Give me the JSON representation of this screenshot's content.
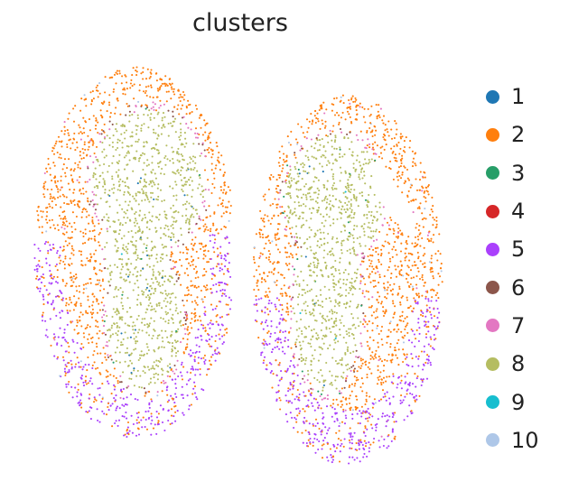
{
  "chart_data": {
    "type": "scatter",
    "title": "clusters",
    "xlabel": "",
    "ylabel": "",
    "grid": false,
    "legend_position": "right",
    "series": [
      {
        "name": "1",
        "color": "#1f77b4"
      },
      {
        "name": "2",
        "color": "#ff7f0e"
      },
      {
        "name": "3",
        "color": "#279e68"
      },
      {
        "name": "4",
        "color": "#d62728"
      },
      {
        "name": "5",
        "color": "#aa40fc"
      },
      {
        "name": "6",
        "color": "#8c564b"
      },
      {
        "name": "7",
        "color": "#e377c2"
      },
      {
        "name": "8",
        "color": "#b5bd61"
      },
      {
        "name": "9",
        "color": "#17becf"
      },
      {
        "name": "10",
        "color": "#aec7e8"
      }
    ]
  }
}
